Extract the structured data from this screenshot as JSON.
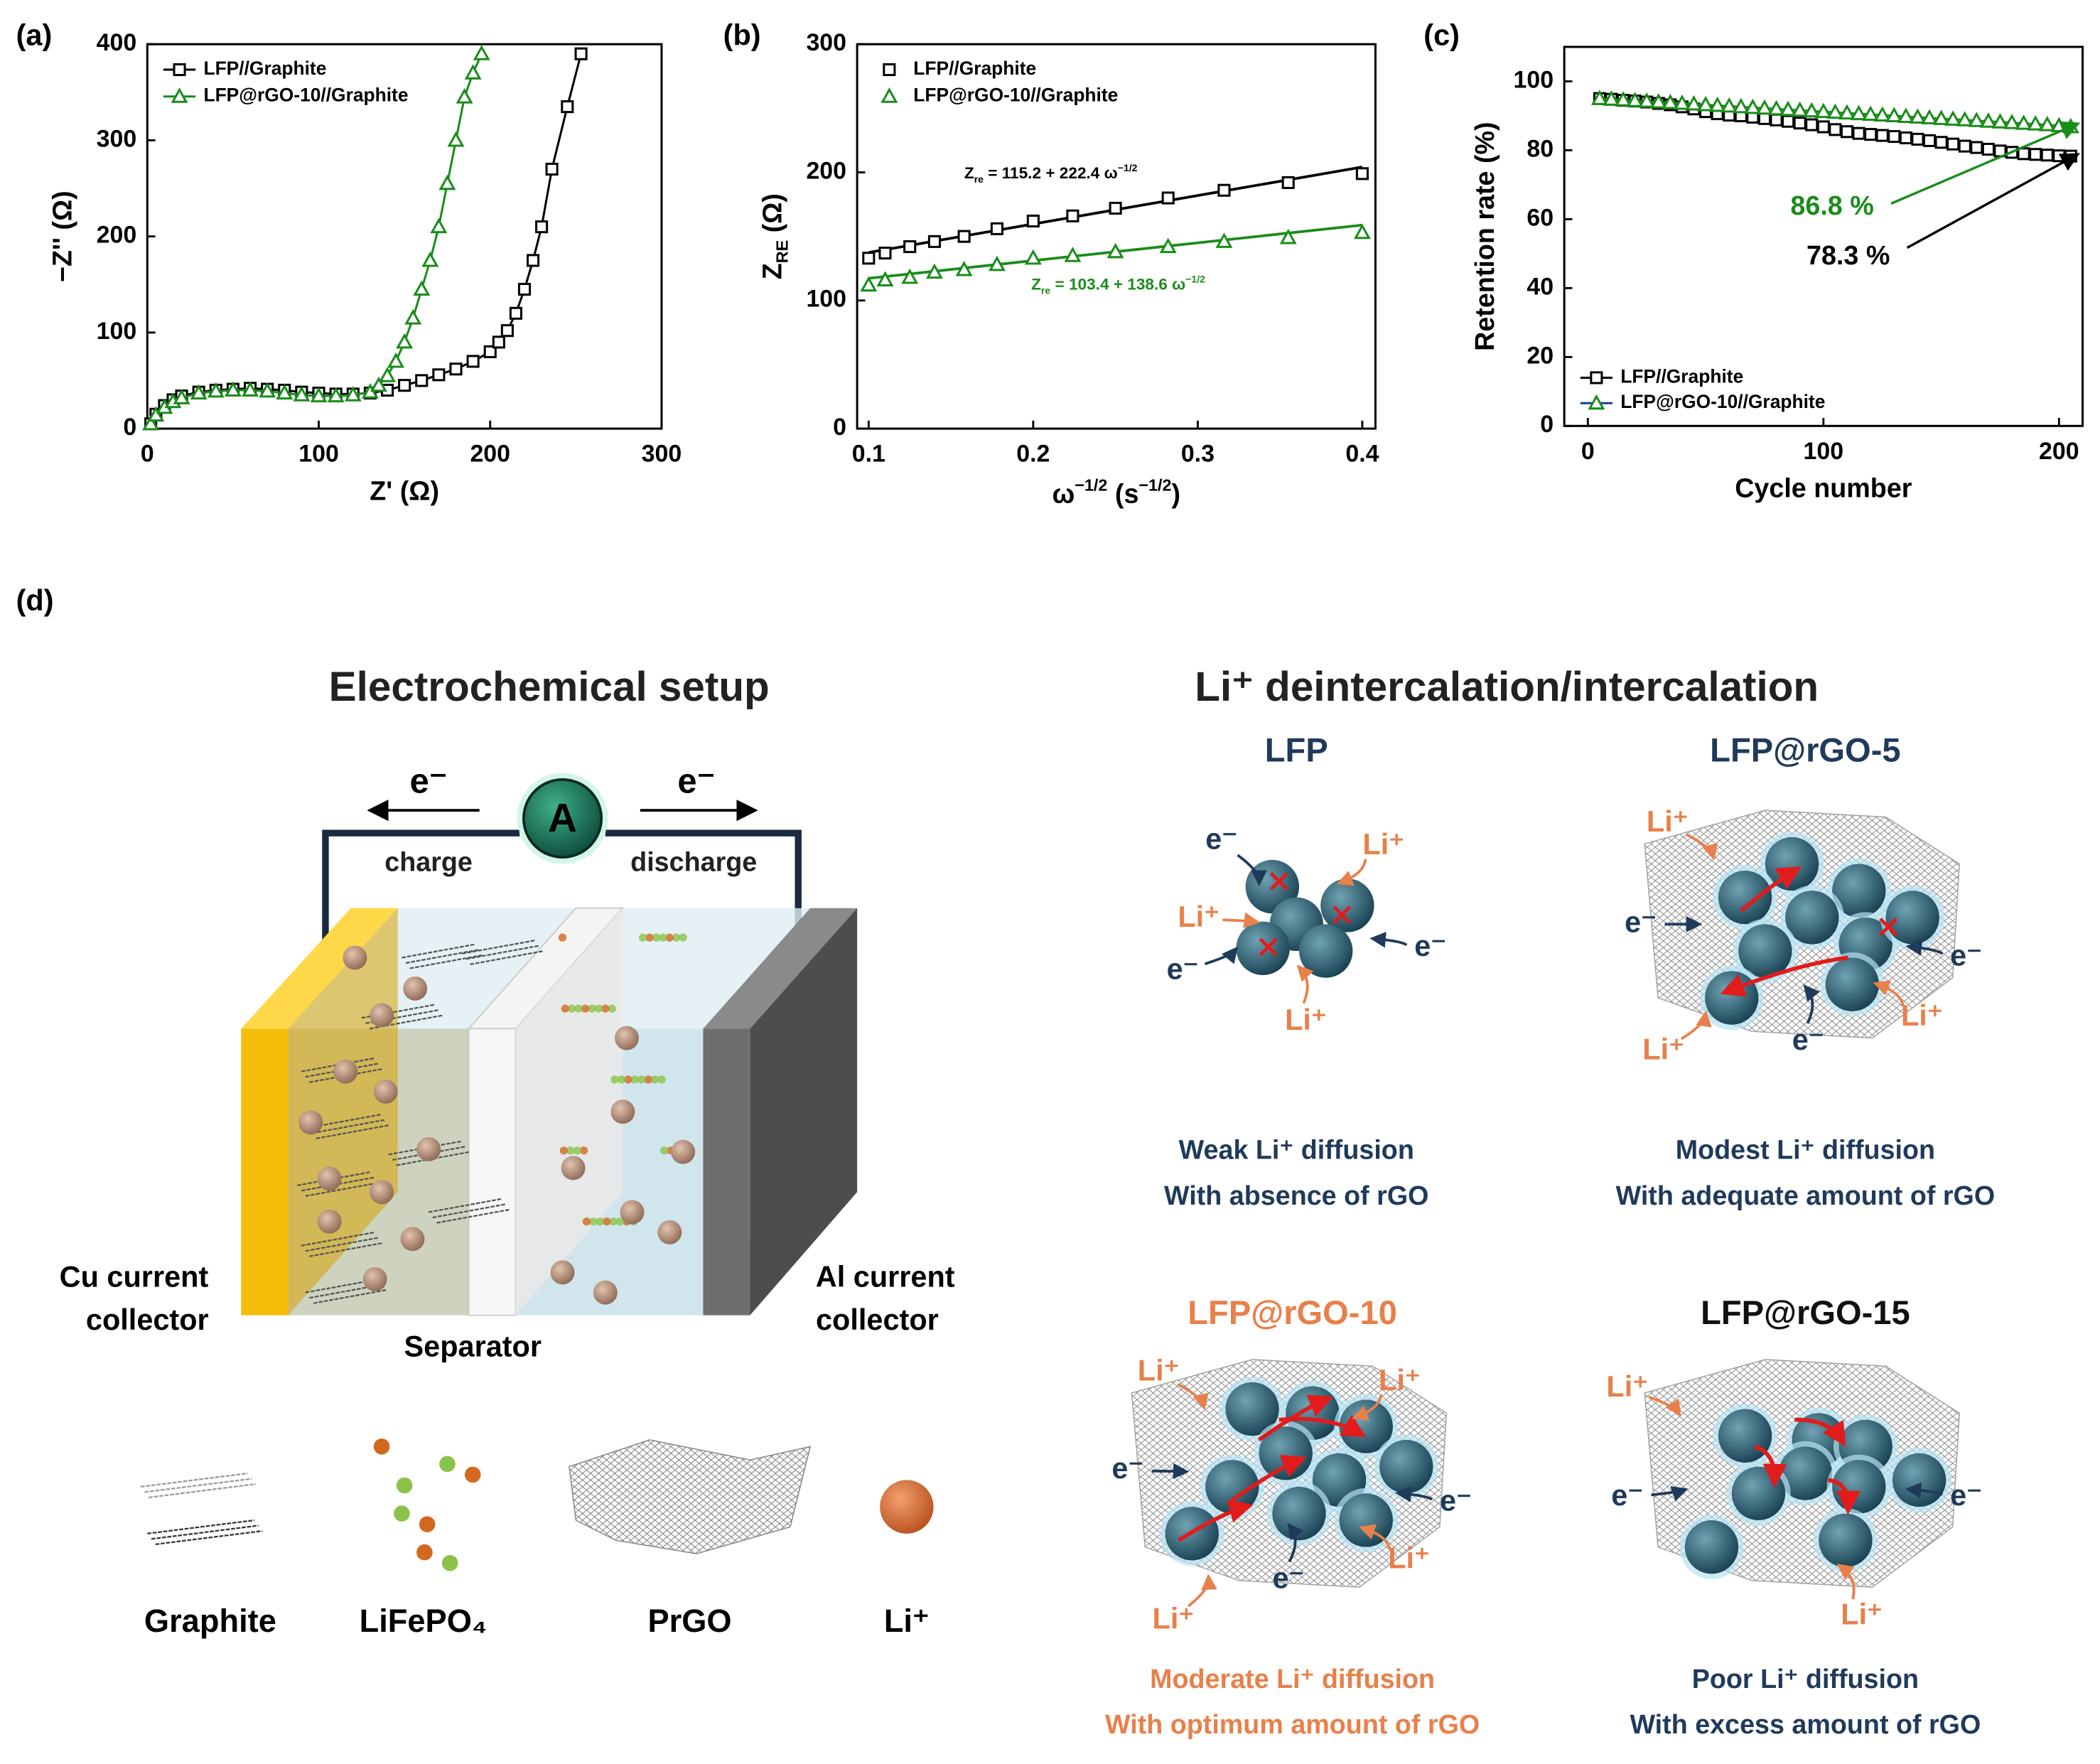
{
  "chart_data": [
    {
      "type": "line",
      "panel": "(a)",
      "xlabel": "Z' (Ω)",
      "ylabel": "−Z'' (Ω)",
      "xlim": [
        0,
        300
      ],
      "ylim": [
        0,
        400
      ],
      "xticks": [
        0,
        100,
        200,
        300
      ],
      "yticks": [
        0,
        100,
        200,
        300,
        400
      ],
      "legend": "upper left",
      "series": [
        {
          "name": "LFP//Graphite",
          "color": "#000000",
          "marker": "square",
          "x": [
            2,
            5,
            10,
            15,
            20,
            30,
            40,
            50,
            60,
            70,
            80,
            90,
            100,
            110,
            120,
            130,
            140,
            150,
            160,
            170,
            180,
            190,
            200,
            205,
            210,
            215,
            220,
            225,
            230,
            236,
            245,
            253
          ],
          "values": [
            5,
            15,
            24,
            30,
            34,
            38,
            40,
            41,
            42,
            41,
            40,
            38,
            37,
            36,
            36,
            37,
            40,
            45,
            50,
            56,
            62,
            70,
            80,
            90,
            102,
            120,
            145,
            175,
            210,
            270,
            335,
            390
          ]
        },
        {
          "name": "LFP@rGO-10//Graphite",
          "color": "#1a8c1a",
          "marker": "triangle",
          "x": [
            2,
            5,
            10,
            15,
            20,
            30,
            40,
            50,
            60,
            70,
            80,
            90,
            100,
            110,
            120,
            130,
            135,
            140,
            145,
            150,
            155,
            160,
            165,
            170,
            175,
            180,
            185,
            190,
            195
          ],
          "values": [
            5,
            14,
            22,
            28,
            32,
            37,
            39,
            40,
            40,
            39,
            37,
            35,
            34,
            34,
            35,
            38,
            45,
            55,
            70,
            90,
            115,
            145,
            175,
            210,
            255,
            300,
            345,
            370,
            390
          ]
        }
      ]
    },
    {
      "type": "scatter",
      "panel": "(b)",
      "xlabel": [
        "ω",
        "−1/2",
        " (s",
        "−1/2",
        ")"
      ],
      "ylabel": [
        "Z",
        "RE",
        " (Ω)"
      ],
      "xlim": [
        0.093,
        0.408
      ],
      "ylim": [
        0,
        300
      ],
      "xticks": [
        0.1,
        0.2,
        0.3,
        0.4
      ],
      "yticks": [
        0,
        100,
        200,
        300
      ],
      "legend": "upper left",
      "x": [
        0.1,
        0.11,
        0.125,
        0.14,
        0.158,
        0.178,
        0.2,
        0.224,
        0.25,
        0.282,
        0.316,
        0.355,
        0.4
      ],
      "series": [
        {
          "name": "LFP//Graphite",
          "color": "#000000",
          "marker": "square",
          "values": [
            133,
            137,
            142,
            146,
            150,
            156,
            162,
            166,
            172,
            180,
            186,
            192,
            199
          ],
          "fit_intercept": 115.2,
          "fit_slope": 222.4,
          "annotation": [
            "Z",
            "re",
            " = 115.2 + 222.4 ω",
            "−1/2"
          ]
        },
        {
          "name": "LFP@rGO-10//Graphite",
          "color": "#1a8c1a",
          "marker": "triangle",
          "values": [
            112,
            116,
            118,
            122,
            124,
            128,
            133,
            135,
            138,
            142,
            146,
            149,
            153
          ],
          "fit_intercept": 103.4,
          "fit_slope": 138.6,
          "annotation": [
            "Z",
            "re",
            " = 103.4 + 138.6 ω",
            "−1/2"
          ]
        }
      ]
    },
    {
      "type": "line",
      "panel": "(c)",
      "xlabel": "Cycle number",
      "ylabel": "Retention rate (%)",
      "xlim": [
        -10,
        210
      ],
      "ylim": [
        0,
        110
      ],
      "xticks": [
        0,
        100,
        200
      ],
      "yticks": [
        0,
        20,
        40,
        60,
        80,
        100
      ],
      "legend": "lower left",
      "x": [
        5,
        10,
        15,
        20,
        25,
        30,
        35,
        40,
        45,
        50,
        55,
        60,
        65,
        70,
        75,
        80,
        85,
        90,
        95,
        100,
        105,
        110,
        115,
        120,
        125,
        130,
        135,
        140,
        145,
        150,
        155,
        160,
        165,
        170,
        175,
        180,
        185,
        190,
        195,
        200,
        205
      ],
      "series": [
        {
          "name": "LFP//Graphite",
          "color": "#000000",
          "marker": "square",
          "values": [
            95,
            94.8,
            94.5,
            94.3,
            94.0,
            93.6,
            93.2,
            92.6,
            92.0,
            91.2,
            90.6,
            90.2,
            90.0,
            89.6,
            89.2,
            88.8,
            88.4,
            87.9,
            87.4,
            86.8,
            86.0,
            85.4,
            84.9,
            84.6,
            84.3,
            84.0,
            83.6,
            83.2,
            82.8,
            82.3,
            81.8,
            81.2,
            80.8,
            80.3,
            79.8,
            79.4,
            79.0,
            78.8,
            78.6,
            78.4,
            78.3
          ]
        },
        {
          "name": "LFP@rGO-10//Graphite",
          "color": "#1a8c1a",
          "marker": "triangle",
          "values": [
            95.0,
            94.8,
            94.6,
            94.4,
            94.2,
            94.0,
            93.8,
            93.6,
            93.4,
            93.2,
            93.0,
            92.8,
            92.6,
            92.4,
            92.2,
            92.0,
            91.8,
            91.6,
            91.4,
            91.2,
            91.0,
            90.8,
            90.6,
            90.4,
            90.2,
            90.0,
            89.8,
            89.6,
            89.4,
            89.2,
            89.0,
            88.8,
            88.6,
            88.4,
            88.2,
            88.0,
            87.8,
            87.6,
            87.4,
            87.1,
            86.8
          ]
        }
      ],
      "annotations": [
        {
          "text": "86.8 %",
          "color": "#1a8c1a"
        },
        {
          "text": "78.3 %",
          "color": "#000000"
        }
      ]
    }
  ],
  "panel_d": {
    "label": "(d)",
    "setup": {
      "title": "Electrochemical setup",
      "electron_left": "e⁻",
      "electron_right": "e⁻",
      "ammeter": "A",
      "charge": "charge",
      "discharge": "discharge",
      "cu": [
        "Cu current",
        "collector"
      ],
      "separator": "Separator",
      "al": [
        "Al current",
        "collector"
      ],
      "legend": [
        "Graphite",
        "LiFePO₄",
        "PrGO",
        "Li⁺"
      ]
    },
    "mechanism": {
      "title": "Li⁺ deintercalation/intercalation",
      "panels": [
        {
          "name": "LFP",
          "labels": [
            "e⁻",
            "Li⁺",
            "Li⁺",
            "e⁻",
            "e⁻",
            "Li⁺"
          ],
          "caption": [
            "Weak Li⁺ diffusion",
            "With absence of rGO"
          ]
        },
        {
          "name": "LFP@rGO-5",
          "labels": [
            "Li⁺",
            "e⁻",
            "e⁻",
            "Li⁺",
            "Li⁺",
            "e⁻"
          ],
          "caption": [
            "Modest Li⁺ diffusion",
            "With adequate amount  of rGO"
          ]
        },
        {
          "name": "LFP@rGO-10",
          "labels": [
            "Li⁺",
            "Li⁺",
            "e⁻",
            "e⁻",
            "Li⁺",
            "e⁻",
            "Li⁺"
          ],
          "caption": [
            "Moderate Li⁺ diffusion",
            "With optimum amount  of rGO"
          ]
        },
        {
          "name": "LFP@rGO-15",
          "labels": [
            "Li⁺",
            "e⁻",
            "e⁻",
            "Li⁺"
          ],
          "caption": [
            "Poor Li⁺ diffusion",
            "With excess amount of rGO"
          ]
        }
      ]
    }
  }
}
